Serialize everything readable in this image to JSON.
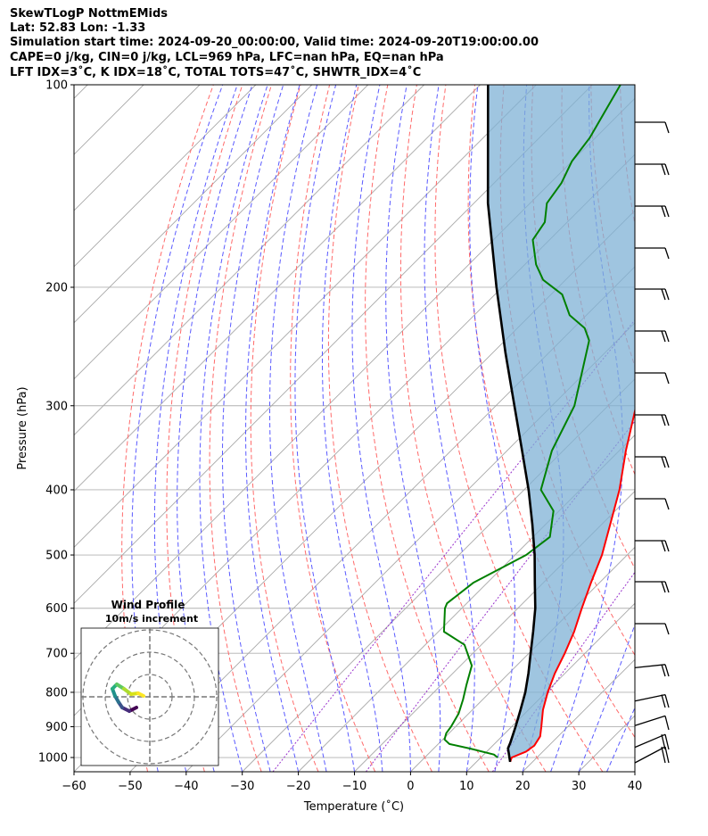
{
  "chart_data": {
    "type": "line",
    "title_lines": [
      "SkewTLogP NottmEMids",
      "Lat: 52.83   Lon: -1.33",
      "Simulation start time: 2024-09-20_00:00:00, Valid time: 2024-09-20T19:00:00.00",
      "CAPE=0 j/kg, CIN=0 j/kg, LCL=969 hPa, LFC=nan hPa, EQ=nan hPa",
      "LFT IDX=3˚C, K IDX=18˚C, TOTAL TOTS=47˚C, SHWTR_IDX=4˚C"
    ],
    "xlabel": "Temperature (˚C)",
    "ylabel": "Pressure (hPa)",
    "xlim": [
      -60,
      40
    ],
    "ylim": [
      1050,
      100
    ],
    "x_ticks": [
      -60,
      -50,
      -40,
      -30,
      -20,
      -10,
      0,
      10,
      20,
      30,
      40
    ],
    "x_tick_labels": [
      "−60",
      "−50",
      "−40",
      "−30",
      "−20",
      "−10",
      "0",
      "10",
      "20",
      "30",
      "40"
    ],
    "y_ticks": [
      1000,
      900,
      800,
      700,
      600,
      500,
      400,
      300,
      200,
      100
    ],
    "y_tick_labels": [
      "1000",
      "900",
      "800",
      "700",
      "600",
      "500",
      "400",
      "300",
      "200",
      "100"
    ],
    "series": [
      {
        "name": "Temperature",
        "color": "#ff0000",
        "points": [
          [
            1015,
            16.0
          ],
          [
            1000,
            15.5
          ],
          [
            980,
            17.0
          ],
          [
            960,
            17.4
          ],
          [
            930,
            16.8
          ],
          [
            900,
            15.3
          ],
          [
            850,
            12.6
          ],
          [
            800,
            10.3
          ],
          [
            750,
            8.2
          ],
          [
            700,
            6.4
          ],
          [
            650,
            4.2
          ],
          [
            600,
            1.4
          ],
          [
            550,
            -1.5
          ],
          [
            500,
            -4.5
          ],
          [
            450,
            -8.5
          ],
          [
            400,
            -13.0
          ],
          [
            350,
            -18.8
          ],
          [
            300,
            -25.0
          ],
          [
            275,
            -29.0
          ],
          [
            250,
            -33.8
          ],
          [
            230,
            -36.5
          ],
          [
            215,
            -40.0
          ],
          [
            200,
            -45.0
          ],
          [
            180,
            -50.0
          ],
          [
            160,
            -56.0
          ],
          [
            150,
            -59.0
          ],
          [
            140,
            -63.0
          ],
          [
            130,
            -65.5
          ],
          [
            120,
            -69.0
          ],
          [
            110,
            -74.5
          ],
          [
            100,
            -77.5
          ]
        ]
      },
      {
        "name": "Dew point",
        "color": "#008000",
        "points": [
          [
            1000,
            13.0
          ],
          [
            990,
            11.8
          ],
          [
            970,
            6.5
          ],
          [
            955,
            2.0
          ],
          [
            940,
            0.3
          ],
          [
            920,
            -0.5
          ],
          [
            900,
            -0.8
          ],
          [
            860,
            -1.8
          ],
          [
            820,
            -3.5
          ],
          [
            780,
            -5.5
          ],
          [
            730,
            -8.0
          ],
          [
            680,
            -13.0
          ],
          [
            650,
            -19.0
          ],
          [
            600,
            -23.0
          ],
          [
            590,
            -23.5
          ],
          [
            550,
            -22.5
          ],
          [
            500,
            -18.0
          ],
          [
            470,
            -17.0
          ],
          [
            430,
            -21.0
          ],
          [
            400,
            -27.0
          ],
          [
            350,
            -32.0
          ],
          [
            300,
            -36.0
          ],
          [
            240,
            -45.0
          ],
          [
            230,
            -48.0
          ],
          [
            220,
            -53.0
          ],
          [
            205,
            -58.0
          ],
          [
            195,
            -64.0
          ],
          [
            185,
            -68.0
          ],
          [
            170,
            -73.0
          ],
          [
            160,
            -74.0
          ],
          [
            150,
            -77.0
          ],
          [
            140,
            -78.0
          ],
          [
            130,
            -80.0
          ],
          [
            120,
            -81.0
          ],
          [
            100,
            -85.0
          ]
        ]
      },
      {
        "name": "Parcel profile",
        "color": "#000000",
        "points": [
          [
            1015,
            16.0
          ],
          [
            969,
            13.2
          ],
          [
            950,
            12.6
          ],
          [
            900,
            10.7
          ],
          [
            850,
            8.6
          ],
          [
            800,
            6.3
          ],
          [
            750,
            3.5
          ],
          [
            700,
            0.3
          ],
          [
            650,
            -3.1
          ],
          [
            600,
            -6.9
          ],
          [
            550,
            -11.5
          ],
          [
            500,
            -16.5
          ],
          [
            450,
            -22.4
          ],
          [
            400,
            -29.2
          ],
          [
            350,
            -37.3
          ],
          [
            300,
            -46.7
          ],
          [
            250,
            -57.8
          ],
          [
            200,
            -71.0
          ],
          [
            150,
            -87.5
          ],
          [
            100,
            -108.6
          ]
        ]
      }
    ],
    "wind_profile_inset": {
      "title": "Wind Profile",
      "subtitle": "10m/s increment"
    }
  }
}
